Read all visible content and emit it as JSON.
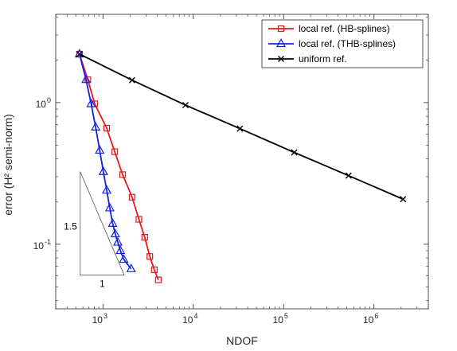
{
  "chart_data": {
    "type": "line",
    "xscale": "log",
    "yscale": "log",
    "xlabel": "NDOF",
    "ylabel": "error (H² semi-norm)",
    "xlim": [
      300,
      4000000
    ],
    "ylim": [
      0.035,
      4.2
    ],
    "x_ticks": [
      {
        "value": 1000,
        "base": "10",
        "exp": "3"
      },
      {
        "value": 10000,
        "base": "10",
        "exp": "4"
      },
      {
        "value": 100000,
        "base": "10",
        "exp": "5"
      },
      {
        "value": 1000000,
        "base": "10",
        "exp": "6"
      }
    ],
    "y_ticks": [
      {
        "value": 0.1,
        "base": "10",
        "exp": "-1"
      },
      {
        "value": 1,
        "base": "10",
        "exp": "0"
      }
    ],
    "grid": false,
    "legend_position": "top-right",
    "series": [
      {
        "name": "local ref. (HB-splines)",
        "color": "#e8191c",
        "marker": "square",
        "x": [
          550,
          680,
          810,
          1100,
          1350,
          1650,
          2100,
          2500,
          2900,
          3300,
          3700,
          4100
        ],
        "y": [
          2.2,
          1.45,
          0.98,
          0.66,
          0.45,
          0.31,
          0.215,
          0.15,
          0.112,
          0.082,
          0.066,
          0.056
        ]
      },
      {
        "name": "local ref. (THB-splines)",
        "color": "#1320e6",
        "marker": "triangle",
        "x": [
          550,
          650,
          740,
          830,
          920,
          1010,
          1100,
          1190,
          1280,
          1370,
          1460,
          1560,
          1700,
          2050
        ],
        "y": [
          2.2,
          1.45,
          0.98,
          0.67,
          0.46,
          0.325,
          0.24,
          0.18,
          0.14,
          0.118,
          0.103,
          0.09,
          0.078,
          0.067
        ]
      },
      {
        "name": "uniform ref.",
        "color": "#000000",
        "marker": "x",
        "x": [
          550,
          2100,
          8200,
          32800,
          131000,
          524000,
          2100000
        ],
        "y": [
          2.2,
          1.44,
          0.96,
          0.655,
          0.445,
          0.305,
          0.208
        ]
      }
    ],
    "annotations": {
      "slope_triangle": {
        "x_left": 560,
        "x_right": 1720,
        "y_bottom": 0.0605,
        "y_top": 0.325,
        "height_label": "1.5",
        "base_label": "1"
      }
    }
  }
}
